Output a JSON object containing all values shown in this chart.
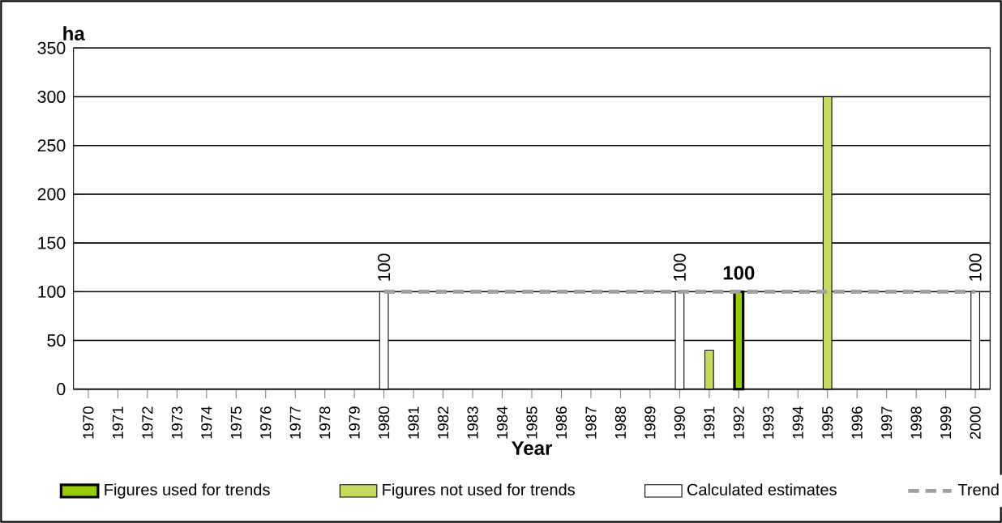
{
  "chart_data": {
    "type": "bar",
    "ylabel": "ha",
    "xlabel": "Year",
    "categories": [
      "1970",
      "1971",
      "1972",
      "1973",
      "1974",
      "1975",
      "1976",
      "1977",
      "1978",
      "1979",
      "1980",
      "1981",
      "1982",
      "1983",
      "1984",
      "1985",
      "1986",
      "1987",
      "1988",
      "1989",
      "1990",
      "1991",
      "1992",
      "1993",
      "1994",
      "1995",
      "1996",
      "1997",
      "1998",
      "1999",
      "2000"
    ],
    "series": [
      {
        "name": "Figures used for trends",
        "color": "#99cc00",
        "values": [
          null,
          null,
          null,
          null,
          null,
          null,
          null,
          null,
          null,
          null,
          null,
          null,
          null,
          null,
          null,
          null,
          null,
          null,
          null,
          null,
          null,
          null,
          100,
          null,
          null,
          null,
          null,
          null,
          null,
          null,
          null
        ],
        "value_labels": [
          null,
          null,
          null,
          null,
          null,
          null,
          null,
          null,
          null,
          null,
          null,
          null,
          null,
          null,
          null,
          null,
          null,
          null,
          null,
          null,
          null,
          null,
          "100",
          null,
          null,
          null,
          null,
          null,
          null,
          null,
          null
        ]
      },
      {
        "name": "Figures not used for trends",
        "color": "#c8d860",
        "values": [
          null,
          null,
          null,
          null,
          null,
          null,
          null,
          null,
          null,
          null,
          null,
          null,
          null,
          null,
          null,
          null,
          null,
          null,
          null,
          null,
          null,
          40,
          null,
          null,
          null,
          300,
          null,
          null,
          null,
          null,
          null
        ]
      },
      {
        "name": "Calculated estimates",
        "color": "#ffffff",
        "values": [
          null,
          null,
          null,
          null,
          null,
          null,
          null,
          null,
          null,
          null,
          100,
          null,
          null,
          null,
          null,
          null,
          null,
          null,
          null,
          null,
          100,
          null,
          null,
          null,
          null,
          null,
          null,
          null,
          null,
          null,
          100
        ],
        "value_labels": [
          null,
          null,
          null,
          null,
          null,
          null,
          null,
          null,
          null,
          null,
          "100",
          null,
          null,
          null,
          null,
          null,
          null,
          null,
          null,
          null,
          "100",
          null,
          null,
          null,
          null,
          null,
          null,
          null,
          null,
          null,
          "100"
        ]
      },
      {
        "name": "Trend",
        "type": "line",
        "line_style": "dashed",
        "color": "#a0a0a0",
        "values": [
          null,
          null,
          null,
          null,
          null,
          null,
          null,
          null,
          null,
          null,
          100,
          100,
          100,
          100,
          100,
          100,
          100,
          100,
          100,
          100,
          100,
          100,
          100,
          100,
          100,
          100,
          100,
          100,
          100,
          100,
          100
        ]
      }
    ],
    "ylim": [
      0,
      350
    ],
    "yticks": [
      0,
      50,
      100,
      150,
      200,
      250,
      300,
      350
    ],
    "grid": "y",
    "legend": "bottom"
  }
}
